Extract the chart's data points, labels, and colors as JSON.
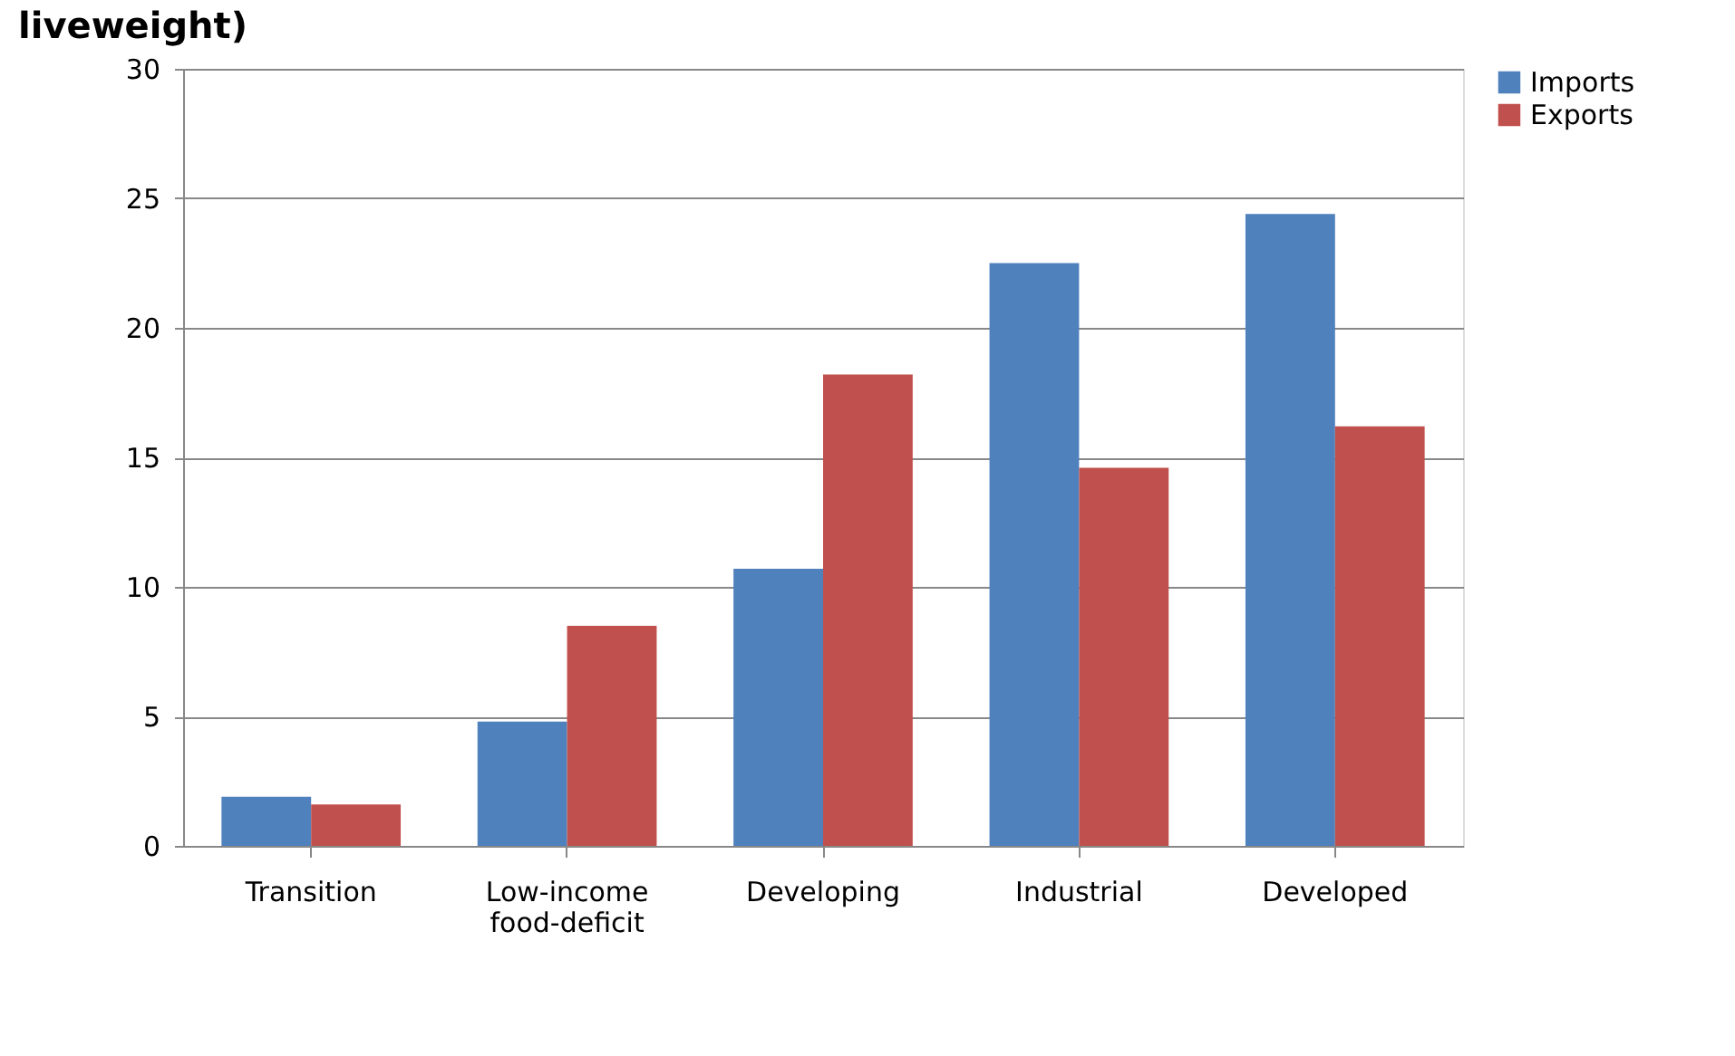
{
  "chart_data": {
    "type": "bar",
    "title": "liveweight)",
    "categories": [
      "Transition",
      "Low-income food-deficit",
      "Developing",
      "Industrial",
      "Developed"
    ],
    "series": [
      {
        "name": "Imports",
        "color": "#4f81bd",
        "values": [
          1.9,
          4.8,
          10.7,
          22.5,
          24.4
        ]
      },
      {
        "name": "Exports",
        "color": "#c0504d",
        "values": [
          1.6,
          8.5,
          18.2,
          14.6,
          16.2
        ]
      }
    ],
    "ylim": [
      0,
      30
    ],
    "yticks": [
      0,
      5,
      10,
      15,
      20,
      25,
      30
    ],
    "grid": "y",
    "legend": "right"
  }
}
